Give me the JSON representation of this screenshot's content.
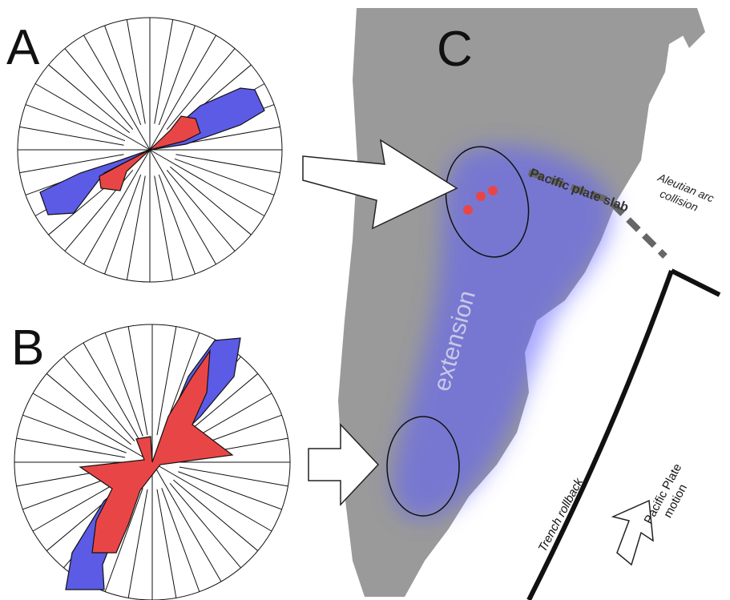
{
  "panels": [
    {
      "label": "A"
    },
    {
      "label": "B"
    },
    {
      "label": "C"
    }
  ],
  "map_labels": {
    "slab": "Pacific plate slab",
    "collision": [
      "Aleutian arc",
      "collision"
    ],
    "extension": "extension",
    "rollback": "Trench rollback",
    "motion": [
      "Pacific Plate",
      "motion"
    ]
  }
}
